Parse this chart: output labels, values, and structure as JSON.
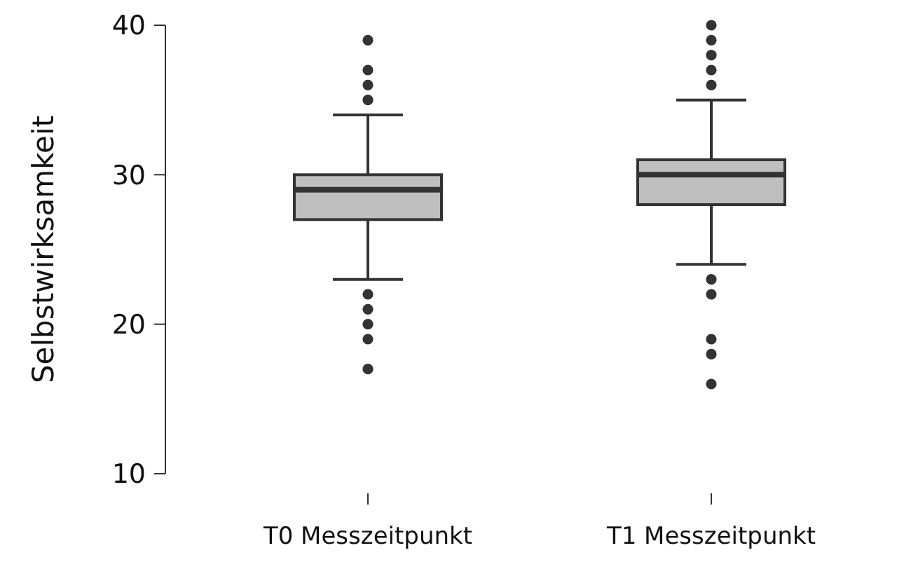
{
  "chart_data": {
    "type": "box",
    "ylabel": "Selbstwirksamkeit",
    "categories": [
      "T0 Messzeitpunkt",
      "T1 Messzeitpunkt"
    ],
    "color": "#bfbfbf",
    "ylim": [
      10,
      40
    ],
    "yticks": [
      10,
      20,
      30,
      40
    ],
    "grid": false,
    "boxes": [
      {
        "low": 23,
        "q1": 27,
        "median": 29,
        "q3": 30,
        "high": 34,
        "outliers": [
          35,
          36,
          37,
          39,
          22,
          21,
          20,
          19,
          17
        ]
      },
      {
        "low": 24,
        "q1": 28,
        "median": 30,
        "q3": 31,
        "high": 35,
        "outliers": [
          36,
          37,
          38,
          39,
          40,
          23,
          22,
          19,
          18,
          16
        ]
      }
    ]
  }
}
